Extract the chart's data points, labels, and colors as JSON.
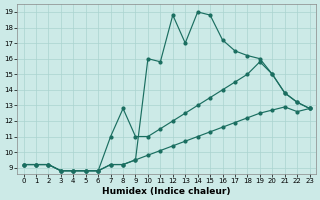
{
  "xlabel": "Humidex (Indice chaleur)",
  "bg_color": "#cceae7",
  "grid_color": "#aad4cf",
  "line_color": "#1a6e60",
  "xlim_min": -0.5,
  "xlim_max": 23.5,
  "ylim_min": 8.6,
  "ylim_max": 19.5,
  "xticks": [
    0,
    1,
    2,
    3,
    4,
    5,
    6,
    7,
    8,
    9,
    10,
    11,
    12,
    13,
    14,
    15,
    16,
    17,
    18,
    19,
    20,
    21,
    22,
    23
  ],
  "yticks": [
    9,
    10,
    11,
    12,
    13,
    14,
    15,
    16,
    17,
    18,
    19
  ],
  "line_top_x": [
    0,
    1,
    2,
    3,
    4,
    5,
    6,
    7,
    8,
    9,
    10,
    11,
    12,
    13,
    14,
    15,
    16,
    17,
    18,
    19,
    20,
    21,
    22,
    23
  ],
  "line_top_y": [
    9.2,
    9.2,
    9.2,
    8.8,
    8.8,
    8.8,
    8.8,
    9.2,
    9.2,
    9.5,
    16.0,
    15.8,
    18.8,
    17.0,
    19.0,
    18.8,
    17.2,
    16.5,
    16.2,
    16.0,
    15.0,
    13.8,
    13.2,
    12.8
  ],
  "line_mid_x": [
    0,
    1,
    2,
    3,
    4,
    5,
    6,
    7,
    8,
    9,
    10,
    11,
    12,
    13,
    14,
    15,
    16,
    17,
    18,
    19,
    20,
    21,
    22,
    23
  ],
  "line_mid_y": [
    9.2,
    9.2,
    9.2,
    8.8,
    8.8,
    8.8,
    8.8,
    11.0,
    12.8,
    11.0,
    11.0,
    11.5,
    12.0,
    12.5,
    13.0,
    13.5,
    14.0,
    14.5,
    15.0,
    15.8,
    15.0,
    13.8,
    13.2,
    12.8
  ],
  "line_bot_x": [
    0,
    1,
    2,
    3,
    4,
    5,
    6,
    7,
    8,
    9,
    10,
    11,
    12,
    13,
    14,
    15,
    16,
    17,
    18,
    19,
    20,
    21,
    22,
    23
  ],
  "line_bot_y": [
    9.2,
    9.2,
    9.2,
    8.8,
    8.8,
    8.8,
    8.8,
    9.2,
    9.2,
    9.5,
    9.8,
    10.1,
    10.4,
    10.7,
    11.0,
    11.3,
    11.6,
    11.9,
    12.2,
    12.5,
    12.7,
    12.9,
    12.6,
    12.8
  ]
}
